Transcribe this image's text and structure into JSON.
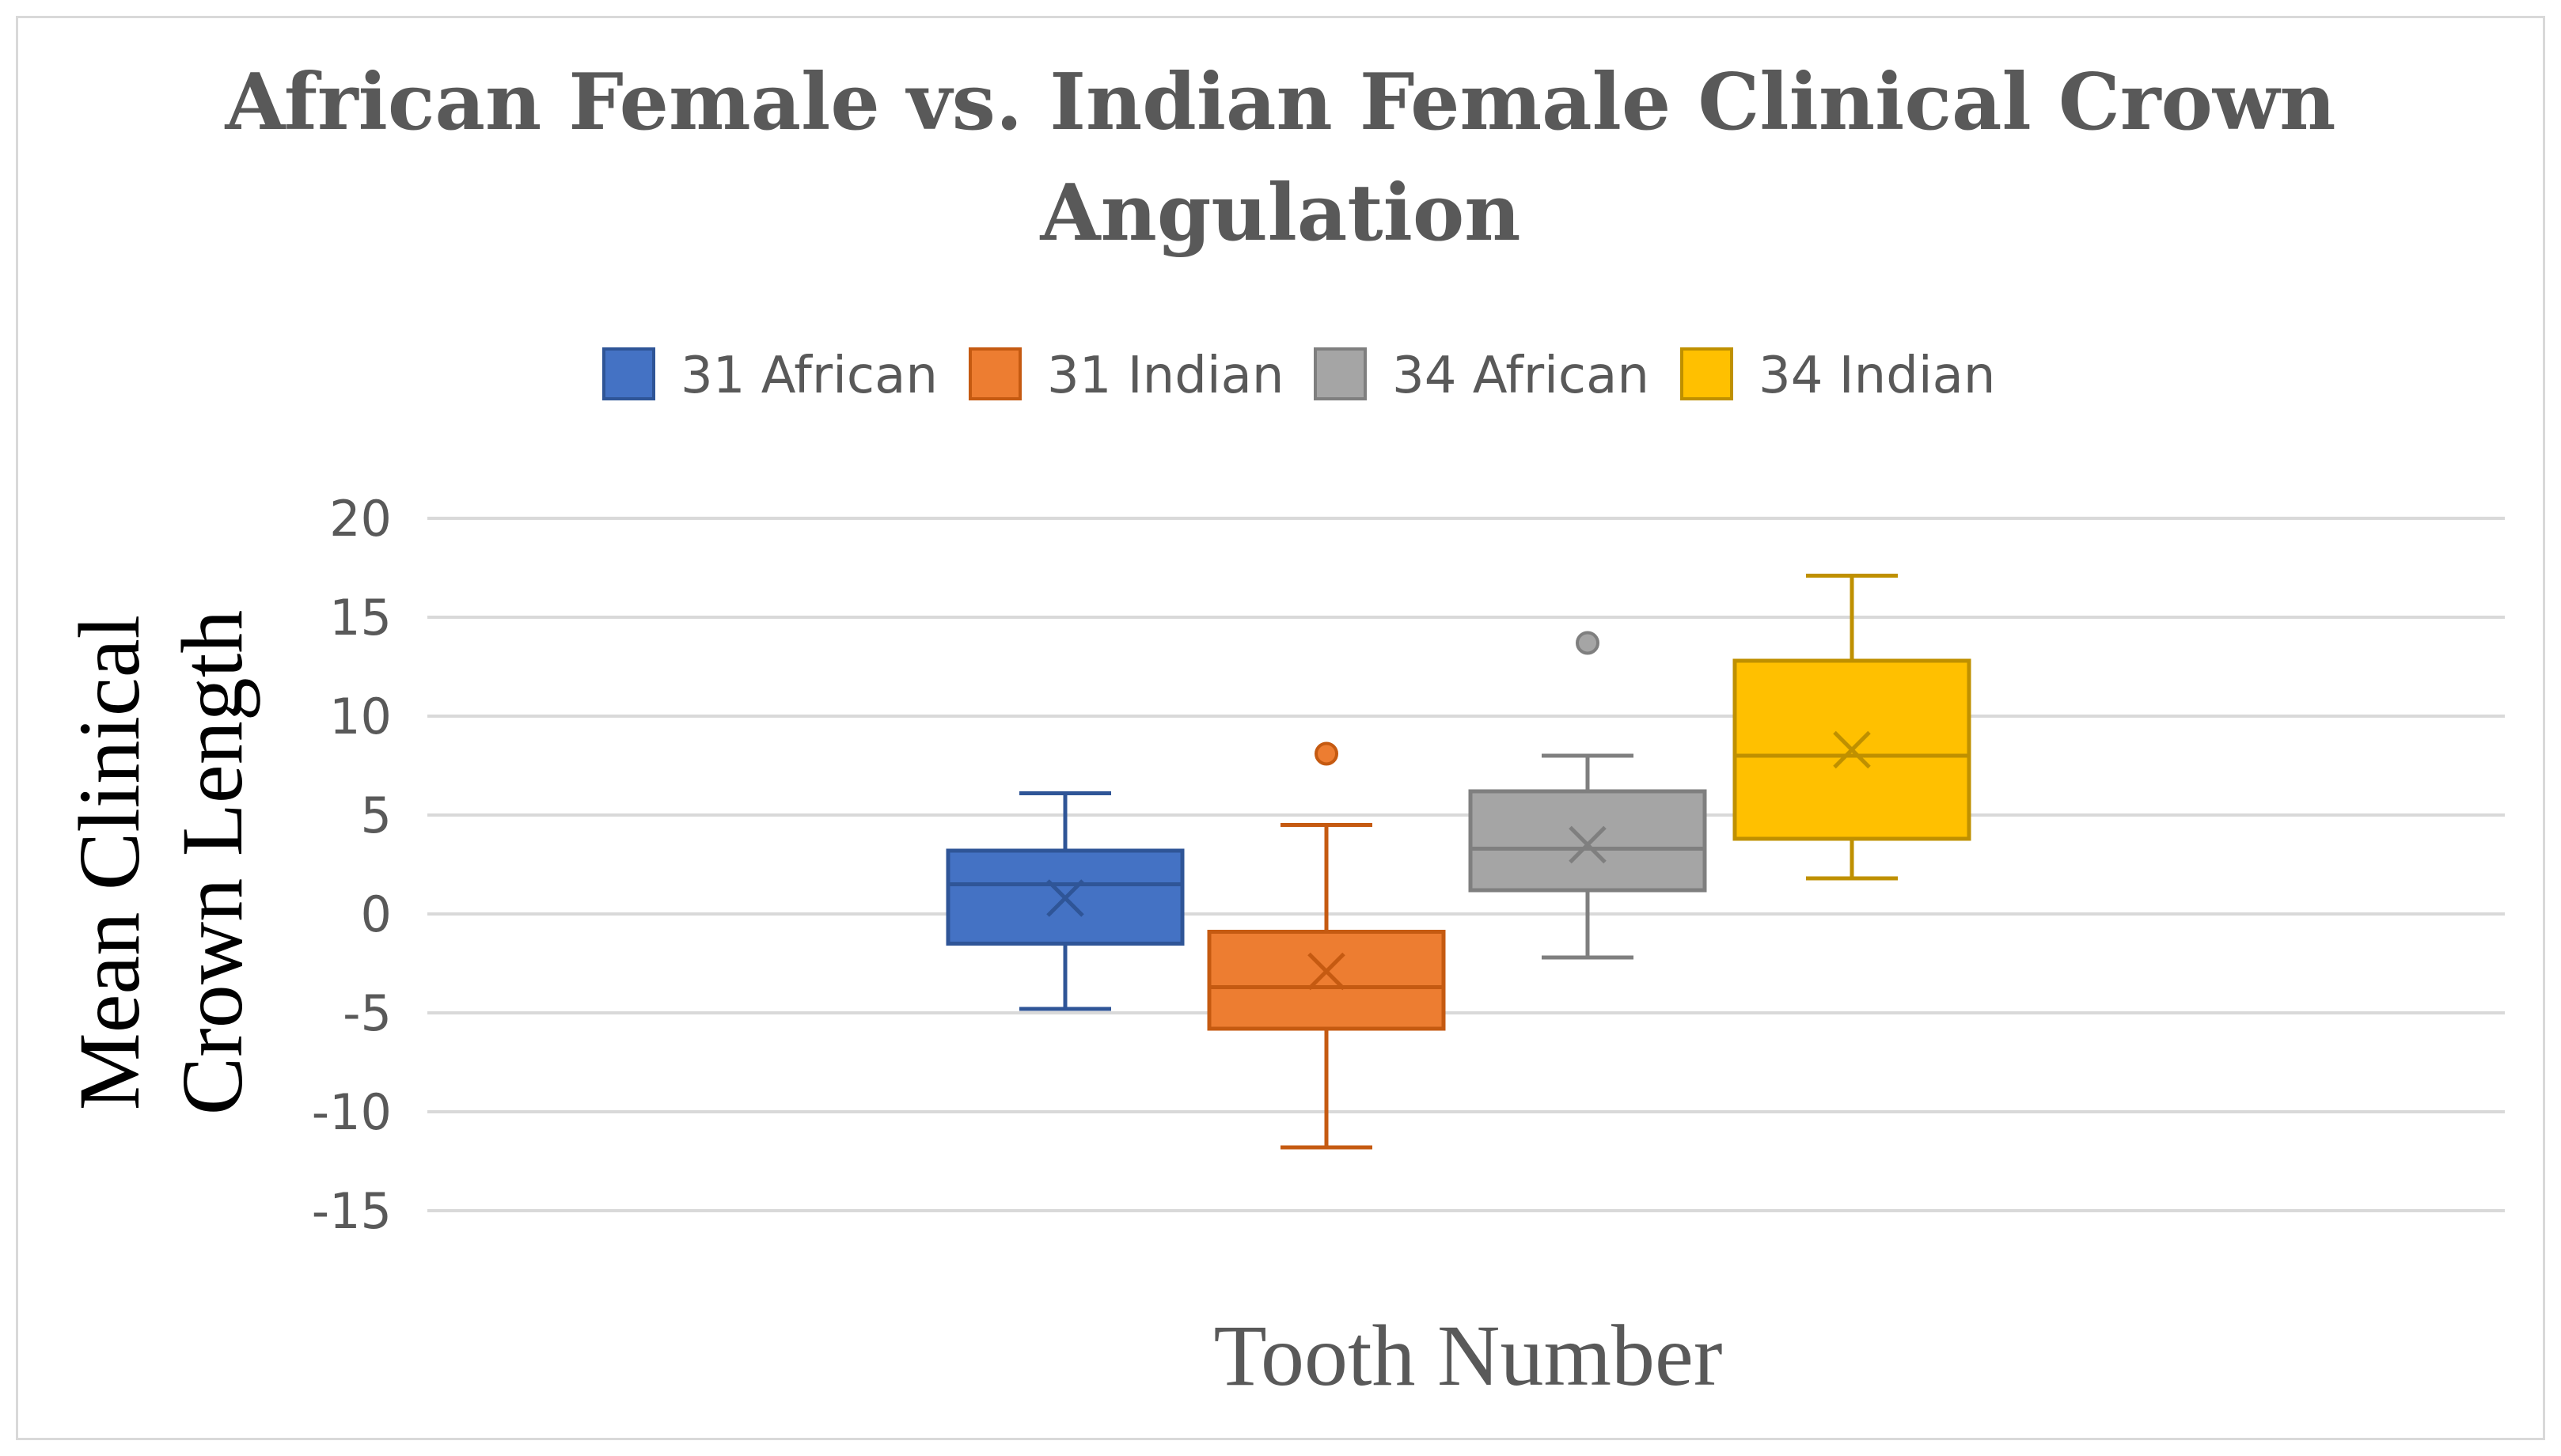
{
  "chart_data": {
    "type": "boxplot",
    "title_lines": [
      "African Female vs. Indian Female Clinical Crown",
      "Angulation"
    ],
    "xlabel": "Tooth Number",
    "ylabel_lines": [
      "Mean Clinical",
      "Crown Length"
    ],
    "ylim": [
      -15,
      20
    ],
    "yticks": [
      20,
      15,
      10,
      5,
      0,
      -5,
      -10,
      -15
    ],
    "grid": true,
    "legend_position": "top",
    "series": [
      {
        "name": "31 African",
        "color": "#4472c4",
        "stroke": "#2f5597",
        "min": -4.8,
        "q1": -1.5,
        "median": 1.5,
        "q3": 3.2,
        "max": 6.1,
        "mean": 0.8,
        "outliers": []
      },
      {
        "name": "31 Indian",
        "color": "#ed7d31",
        "stroke": "#c55a11",
        "min": -11.8,
        "q1": -5.8,
        "median": -3.7,
        "q3": -0.9,
        "max": 4.5,
        "mean": -2.9,
        "outliers": [
          8.1
        ]
      },
      {
        "name": "34 African",
        "color": "#a5a5a5",
        "stroke": "#7f7f7f",
        "min": -2.2,
        "q1": 1.2,
        "median": 3.3,
        "q3": 6.2,
        "max": 8.0,
        "mean": 3.5,
        "outliers": [
          13.7
        ]
      },
      {
        "name": "34 Indian",
        "color": "#ffc000",
        "stroke": "#bf9000",
        "min": 1.8,
        "q1": 3.8,
        "median": 8.0,
        "q3": 12.8,
        "max": 17.1,
        "mean": 8.3,
        "outliers": []
      }
    ]
  }
}
